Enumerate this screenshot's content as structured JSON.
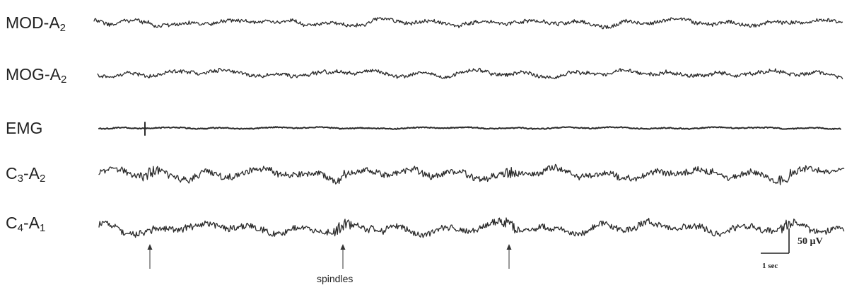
{
  "channels": [
    {
      "id": "mod-a2",
      "base": "MOD-A",
      "sub": "2",
      "amplitude": "medium",
      "spindles": false
    },
    {
      "id": "mog-a2",
      "base": "MOG-A",
      "sub": "2",
      "amplitude": "medium",
      "spindles": false
    },
    {
      "id": "emg",
      "base": "EMG",
      "sub": "",
      "amplitude": "low",
      "spindles": false
    },
    {
      "id": "c3-a2",
      "base": "C",
      "sub": "3",
      "base2": "-A",
      "sub2": "2",
      "amplitude": "high",
      "spindles": true
    },
    {
      "id": "c4-a1",
      "base": "C",
      "sub": "4",
      "base2": "-A",
      "sub2": "1",
      "amplitude": "high",
      "spindles": true
    }
  ],
  "annotation": {
    "text": "spindles",
    "arrow_count": 3
  },
  "scale_bar": {
    "amplitude_label": "50 µV",
    "time_label": "1 sec"
  },
  "colors": {
    "trace": "#2b2b2b",
    "text": "#222222",
    "background": "#ffffff"
  }
}
